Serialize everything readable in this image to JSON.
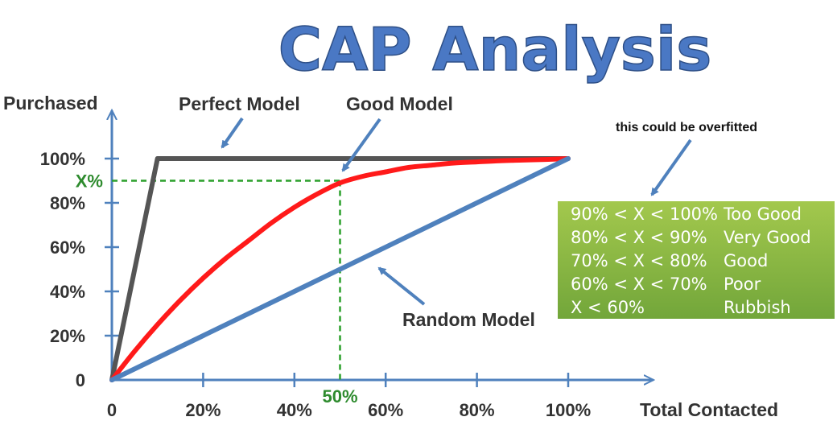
{
  "chart_data": {
    "type": "line",
    "title": "CAP Analysis",
    "xlabel": "Total Contacted",
    "ylabel": "Purchased",
    "xlim": [
      0,
      100
    ],
    "ylim": [
      0,
      100
    ],
    "x_ticks": [
      "0",
      "20%",
      "40%",
      "60%",
      "80%",
      "100%"
    ],
    "y_ticks": [
      "0",
      "20%",
      "40%",
      "60%",
      "80%",
      "100%"
    ],
    "series": [
      {
        "name": "Perfect Model",
        "color": "#555555",
        "x": [
          0,
          10,
          100
        ],
        "y": [
          0,
          100,
          100
        ]
      },
      {
        "name": "Good Model",
        "color": "#ff1a1a",
        "x": [
          0,
          5,
          10,
          15,
          20,
          25,
          30,
          35,
          40,
          45,
          50,
          55,
          60,
          65,
          70,
          75,
          80,
          85,
          90,
          95,
          100
        ],
        "y": [
          0,
          13,
          25,
          36,
          46,
          55,
          63,
          71,
          78,
          84,
          89,
          92,
          94,
          96,
          97,
          98,
          98.5,
          99,
          99.3,
          99.6,
          100
        ]
      },
      {
        "name": "Random Model",
        "color": "#4f81bd",
        "x": [
          0,
          100
        ],
        "y": [
          0,
          100
        ]
      }
    ],
    "reference": {
      "x": 50,
      "y": 90,
      "x_label": "50%",
      "y_label": "X%",
      "color": "#2ca02c"
    },
    "annotations": {
      "perfect": "Perfect Model",
      "good": "Good Model",
      "random": "Random Model",
      "note": "this could be overfitted"
    },
    "grid": false
  },
  "legend": {
    "rows": [
      {
        "range": "90% < X < 100%",
        "label": "Too Good"
      },
      {
        "range": "80% < X < 90%",
        "label": "Very Good"
      },
      {
        "range": "70% < X < 80%",
        "label": "Good"
      },
      {
        "range": "60% < X < 70%",
        "label": "Poor"
      },
      {
        "range": "X < 60%",
        "label": "Rubbish"
      }
    ]
  }
}
